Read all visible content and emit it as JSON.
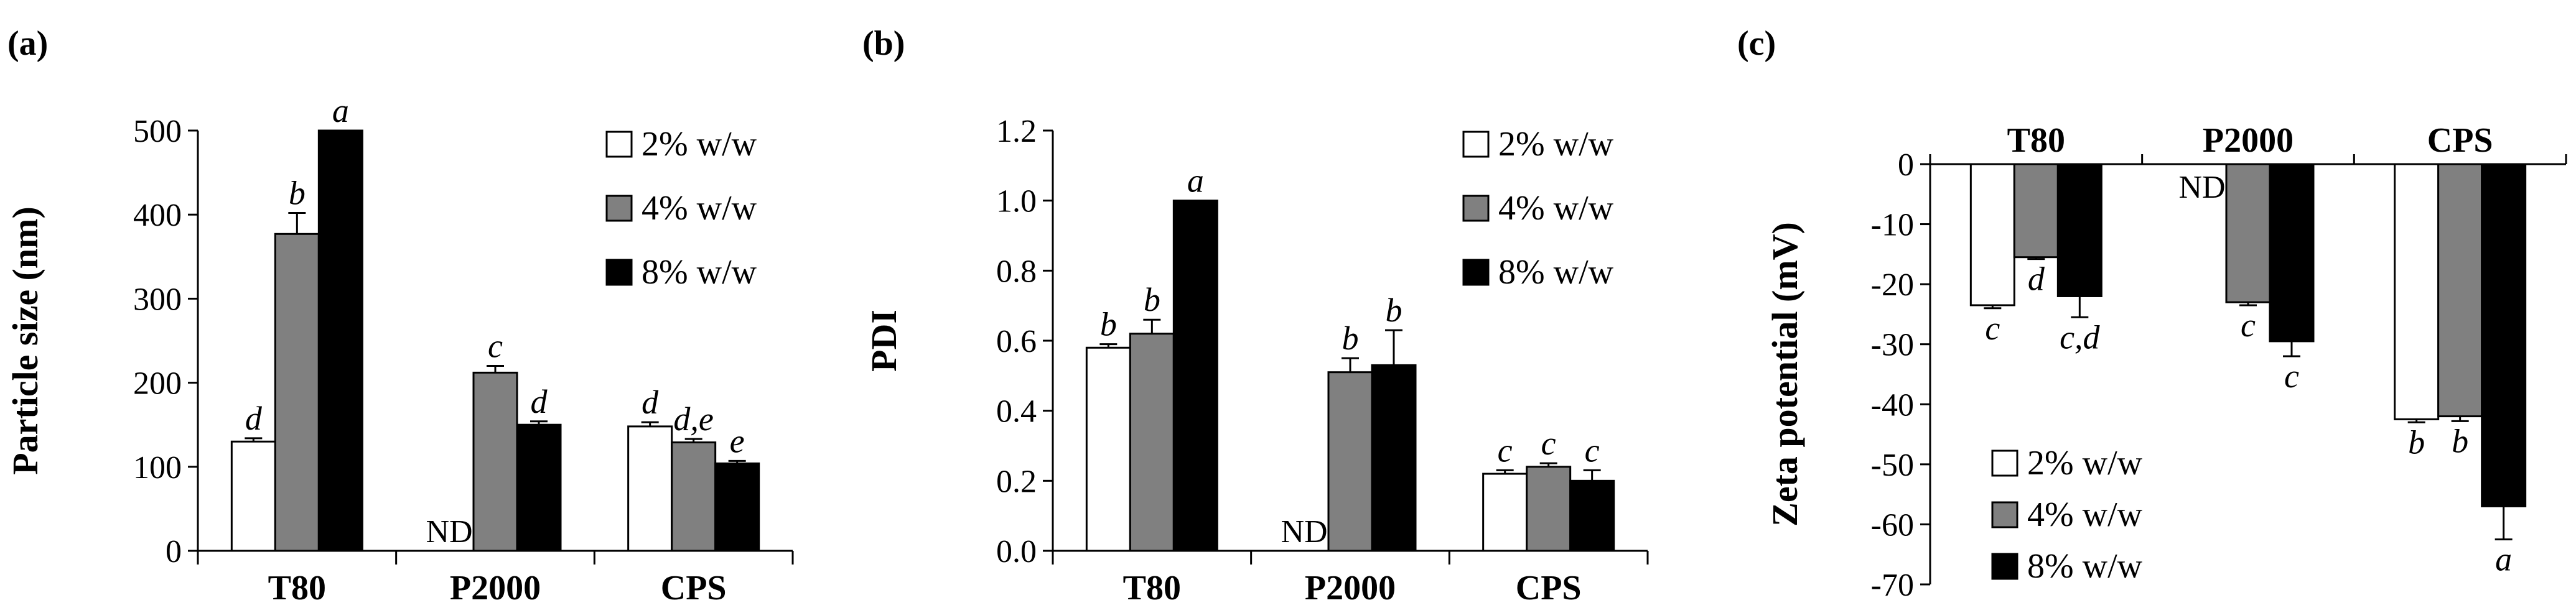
{
  "colors": {
    "series_2": "#ffffff",
    "series_4": "#808080",
    "series_8": "#000000",
    "axis": "#000000"
  },
  "chart_data": [
    {
      "panel": "(a)",
      "type": "bar",
      "categories": [
        "T80",
        "P2000",
        "CPS"
      ],
      "ylabel": "Particle size (nm)",
      "ylim": [
        0,
        500
      ],
      "yticks": [
        0,
        100,
        200,
        300,
        400,
        500
      ],
      "xaxis_at_top": false,
      "legend": "top-right",
      "series": [
        {
          "name": "2% w/w",
          "values": [
            130,
            null,
            148
          ],
          "errors": [
            4,
            null,
            5
          ],
          "labels": [
            "d",
            "ND",
            "d"
          ]
        },
        {
          "name": "4% w/w",
          "values": [
            377,
            212,
            129
          ],
          "errors": [
            25,
            8,
            4
          ],
          "labels": [
            "b",
            "c",
            "d,e"
          ]
        },
        {
          "name": "8% w/w",
          "values": [
            500,
            150,
            104
          ],
          "errors": [
            0,
            4,
            3
          ],
          "labels": [
            "a",
            "d",
            "e"
          ]
        }
      ]
    },
    {
      "panel": "(b)",
      "type": "bar",
      "categories": [
        "T80",
        "P2000",
        "CPS"
      ],
      "ylabel": "PDI",
      "ylim": [
        0,
        1.2
      ],
      "yticks": [
        "0.0",
        "0.2",
        "0.4",
        "0.6",
        "0.8",
        "1.0",
        "1.2"
      ],
      "xaxis_at_top": false,
      "legend": "top-right",
      "series": [
        {
          "name": "2% w/w",
          "values": [
            0.58,
            null,
            0.22
          ],
          "errors": [
            0.01,
            null,
            0.01
          ],
          "labels": [
            "b",
            "ND",
            "c"
          ]
        },
        {
          "name": "4% w/w",
          "values": [
            0.62,
            0.51,
            0.24
          ],
          "errors": [
            0.04,
            0.04,
            0.01
          ],
          "labels": [
            "b",
            "b",
            "c"
          ]
        },
        {
          "name": "8% w/w",
          "values": [
            1.0,
            0.53,
            0.2
          ],
          "errors": [
            0,
            0.1,
            0.03
          ],
          "labels": [
            "a",
            "b",
            "c"
          ]
        }
      ]
    },
    {
      "panel": "(c)",
      "type": "bar",
      "categories": [
        "T80",
        "P2000",
        "CPS"
      ],
      "ylabel": "Zeta potential (mV)",
      "ylim": [
        -70,
        0
      ],
      "yticks": [
        0,
        -10,
        -20,
        -30,
        -40,
        -50,
        -60,
        -70
      ],
      "xaxis_at_top": true,
      "legend": "bottom-left",
      "series": [
        {
          "name": "2% w/w",
          "values": [
            -23.5,
            null,
            -42.5
          ],
          "errors": [
            0.5,
            null,
            0.5
          ],
          "labels": [
            "c",
            "ND",
            "b"
          ]
        },
        {
          "name": "4% w/w",
          "values": [
            -15.5,
            -23.0,
            -42.0
          ],
          "errors": [
            0.3,
            0.5,
            0.8
          ],
          "labels": [
            "d",
            "c",
            "b"
          ]
        },
        {
          "name": "8% w/w",
          "values": [
            -22.0,
            -29.5,
            -57.0
          ],
          "errors": [
            3.5,
            2.5,
            5.5
          ],
          "labels": [
            "c,d",
            "c",
            "a"
          ]
        }
      ]
    }
  ]
}
